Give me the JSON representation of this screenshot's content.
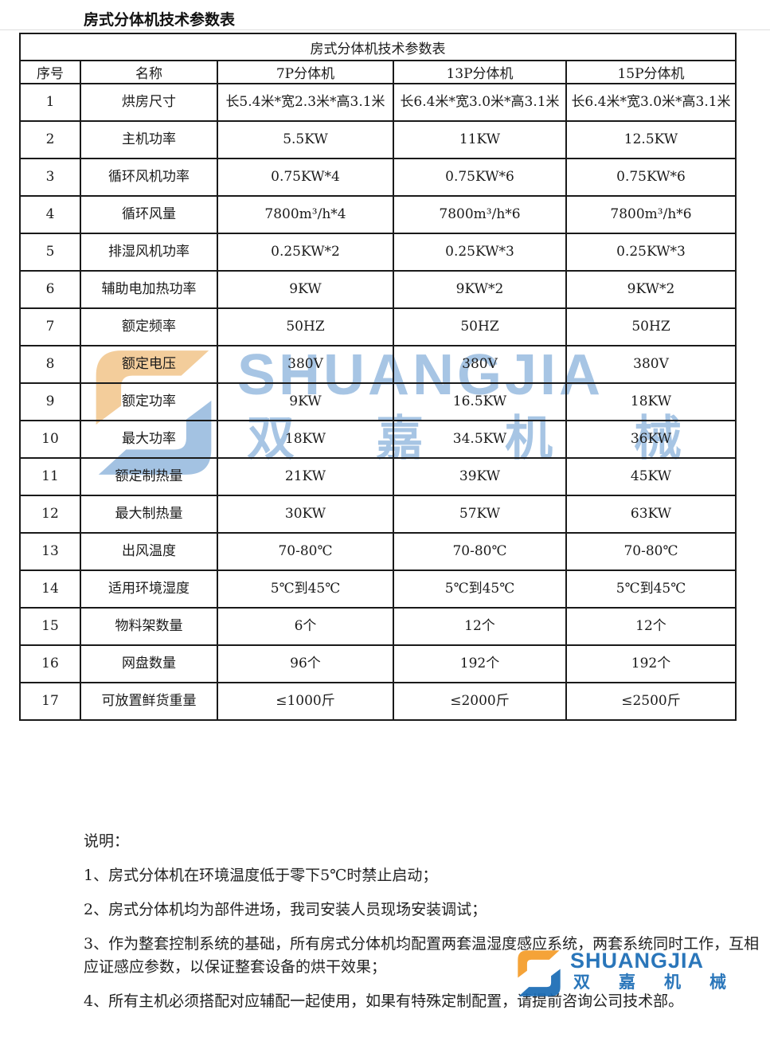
{
  "page_title": "房式分体机技术参数表",
  "table": {
    "caption": "房式分体机技术参数表",
    "columns": [
      "序号",
      "名称",
      "7P分体机",
      "13P分体机",
      "15P分体机"
    ],
    "rows": [
      {
        "no": "1",
        "name": "烘房尺寸",
        "p7": "长5.4米*宽2.3米*高3.1米",
        "p13": "长6.4米*宽3.0米*高3.1米",
        "p15": "长6.4米*宽3.0米*高3.1米"
      },
      {
        "no": "2",
        "name": "主机功率",
        "p7": "5.5KW",
        "p13": "11KW",
        "p15": "12.5KW"
      },
      {
        "no": "3",
        "name": "循环风机功率",
        "p7": "0.75KW*4",
        "p13": "0.75KW*6",
        "p15": "0.75KW*6"
      },
      {
        "no": "4",
        "name": "循环风量",
        "p7": "7800m³/h*4",
        "p13": "7800m³/h*6",
        "p15": "7800m³/h*6"
      },
      {
        "no": "5",
        "name": "排湿风机功率",
        "p7": "0.25KW*2",
        "p13": "0.25KW*3",
        "p15": "0.25KW*3"
      },
      {
        "no": "6",
        "name": "辅助电加热功率",
        "p7": "9KW",
        "p13": "9KW*2",
        "p15": "9KW*2"
      },
      {
        "no": "7",
        "name": "额定频率",
        "p7": "50HZ",
        "p13": "50HZ",
        "p15": "50HZ"
      },
      {
        "no": "8",
        "name": "额定电压",
        "p7": "380V",
        "p13": "380V",
        "p15": "380V"
      },
      {
        "no": "9",
        "name": "额定功率",
        "p7": "9KW",
        "p13": "16.5KW",
        "p15": "18KW"
      },
      {
        "no": "10",
        "name": "最大功率",
        "p7": "18KW",
        "p13": "34.5KW",
        "p15": "36KW"
      },
      {
        "no": "11",
        "name": "额定制热量",
        "p7": "21KW",
        "p13": "39KW",
        "p15": "45KW"
      },
      {
        "no": "12",
        "name": "最大制热量",
        "p7": "30KW",
        "p13": "57KW",
        "p15": "63KW"
      },
      {
        "no": "13",
        "name": "出风温度",
        "p7": "70-80℃",
        "p13": "70-80℃",
        "p15": "70-80℃"
      },
      {
        "no": "14",
        "name": "适用环境湿度",
        "p7": "5℃到45℃",
        "p13": "5℃到45℃",
        "p15": "5℃到45℃"
      },
      {
        "no": "15",
        "name": "物料架数量",
        "p7": "6个",
        "p13": "12个",
        "p15": "12个"
      },
      {
        "no": "16",
        "name": "网盘数量",
        "p7": "96个",
        "p13": "192个",
        "p15": "192个"
      },
      {
        "no": "17",
        "name": "可放置鲜货重量",
        "p7": "≤1000斤",
        "p13": "≤2000斤",
        "p15": "≤2500斤"
      }
    ]
  },
  "notes": {
    "heading": "说明：",
    "items": [
      "1、房式分体机在环境温度低于零下5℃时禁止启动；",
      "2、房式分体机均为部件进场，我司安装人员现场安装调试；",
      "3、作为整套控制系统的基础，所有房式分体机均配置两套温湿度感应系统，两套系统同时工作，互相应证感应参数，以保证整套设备的烘干效果；",
      "4、所有主机必须搭配对应辅配一起使用，如果有特殊定制配置，请提前咨询公司技术部。"
    ]
  },
  "watermark": {
    "brand_latin": "SHUANGJIA",
    "brand_cjk": "双嘉机械",
    "colors": {
      "watermark_blue": "#a7c5e4",
      "watermark_orange": "#f3cd9b",
      "logo_blue": "#1a6cb5",
      "logo_orange": "#f59d29"
    }
  },
  "footer_logo": {
    "brand_latin": "SHUANGJIA",
    "brand_cjk": "双嘉机械"
  }
}
